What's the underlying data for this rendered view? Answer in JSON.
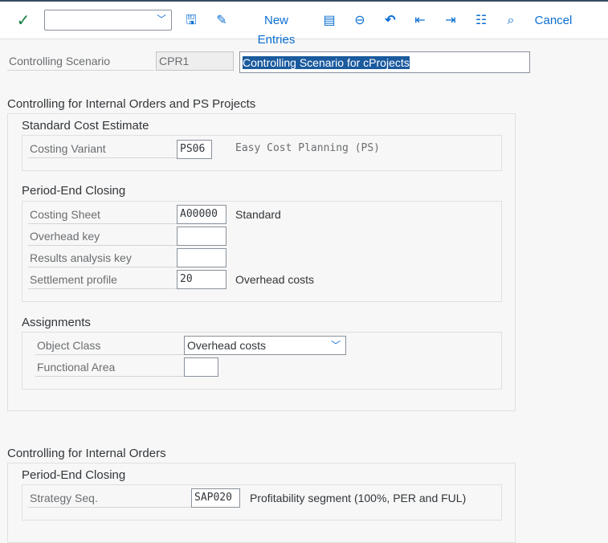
{
  "toolbar": {
    "check_icon": "check-icon",
    "command_field": "",
    "save_icon": "save-icon",
    "display_change_icon": "display-change-icon",
    "new_entries": "New Entries",
    "copy_icon": "copy-icon",
    "delete_icon": "delete-icon",
    "undo_icon": "undo-icon",
    "prev_icon": "previous-entry-icon",
    "next_icon": "next-entry-icon",
    "select_all_icon": "select-all-icon",
    "where_used_icon": "where-used-icon",
    "cancel": "Cancel"
  },
  "header": {
    "label": "Controlling Scenario",
    "code": "CPR1",
    "description": "Controlling Scenario for cProjects"
  },
  "group1": {
    "title": "Controlling for Internal Orders and PS Projects",
    "standard_cost": {
      "title": "Standard Cost Estimate",
      "costing_variant_label": "Costing Variant",
      "costing_variant": "PS06",
      "costing_variant_text": "Easy Cost Planning (PS)"
    },
    "period_end": {
      "title": "Period-End Closing",
      "costing_sheet_label": "Costing Sheet",
      "costing_sheet": "A00000",
      "costing_sheet_text": "Standard",
      "overhead_key_label": "Overhead key",
      "overhead_key": "",
      "ra_key_label": "Results analysis key",
      "ra_key": "",
      "settlement_label": "Settlement profile",
      "settlement": "20",
      "settlement_text": "Overhead costs"
    },
    "assignments": {
      "title": "Assignments",
      "object_class_label": "Object Class",
      "object_class": "Overhead costs",
      "functional_area_label": "Functional Area",
      "functional_area": ""
    }
  },
  "group2": {
    "title": "Controlling for Internal Orders",
    "period_end": {
      "title": "Period-End Closing",
      "strategy_label": "Strategy Seq.",
      "strategy": "SAP020",
      "strategy_text": "Profitability segment (100%, PER and FUL)"
    }
  }
}
